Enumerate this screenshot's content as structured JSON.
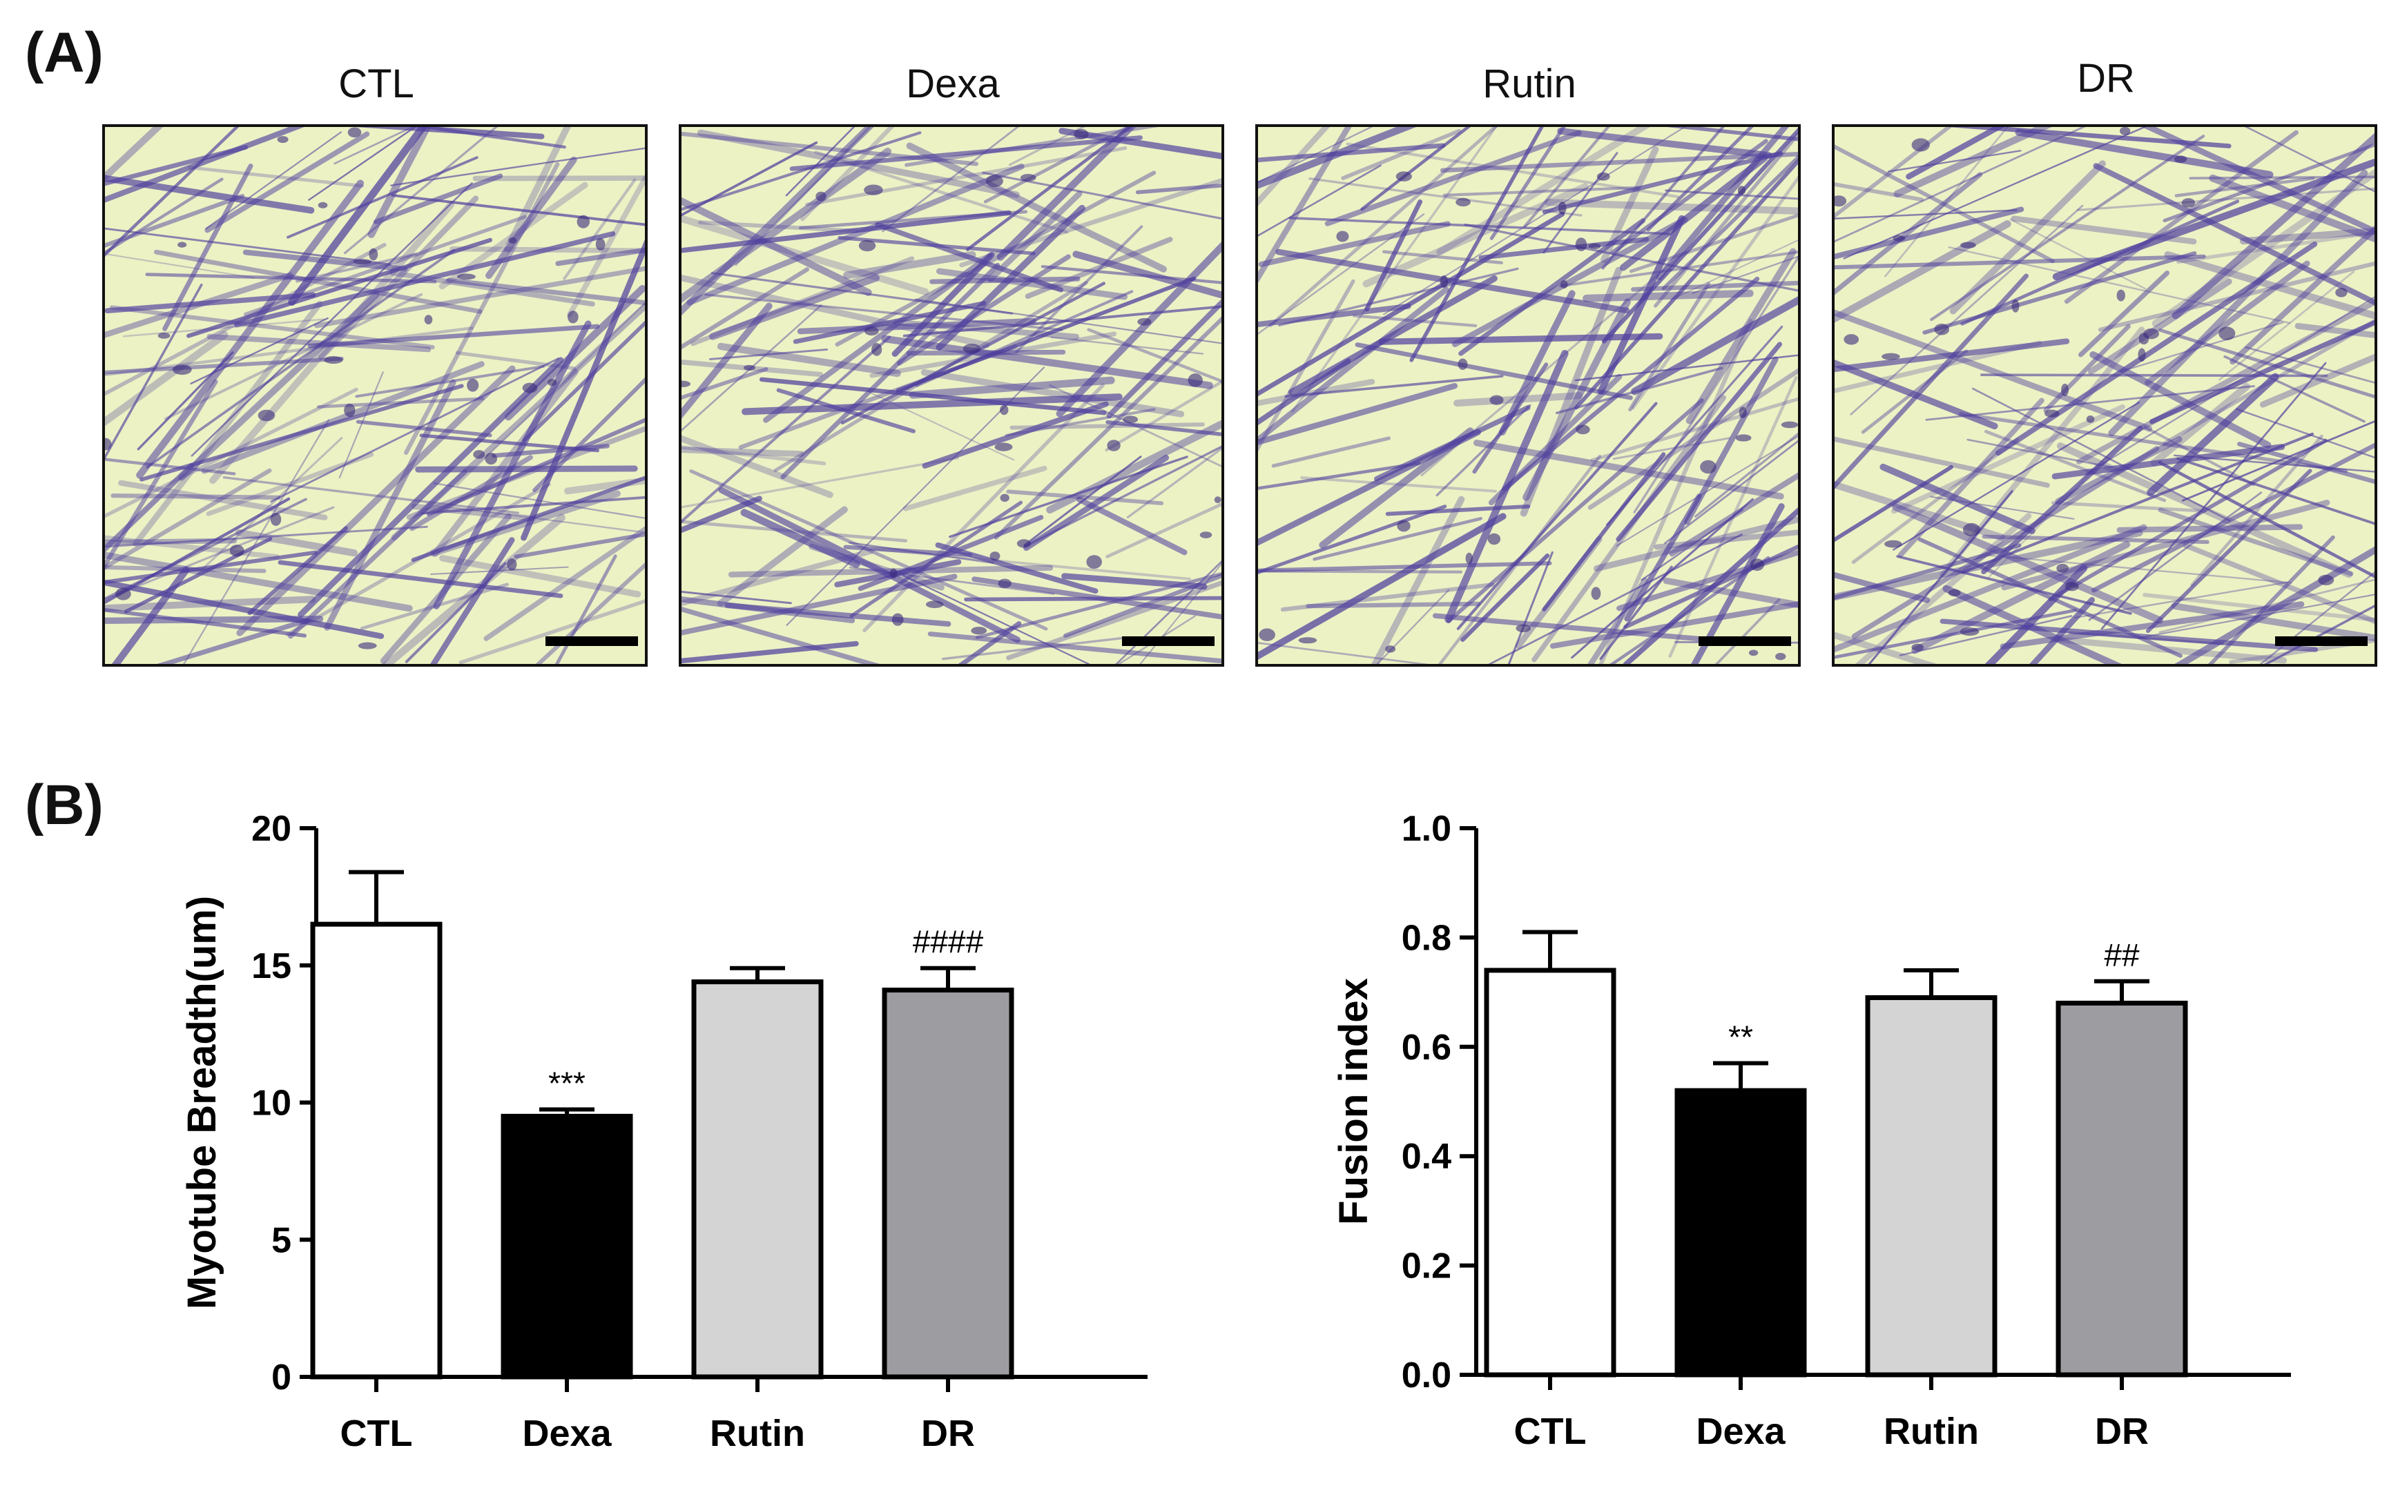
{
  "panels": {
    "a": "(A)",
    "b": "(B)"
  },
  "micrographs": [
    {
      "title": "CTL",
      "scale_bar": true
    },
    {
      "title": "Dexa",
      "scale_bar": true
    },
    {
      "title": "Rutin",
      "scale_bar": true
    },
    {
      "title": "DR",
      "scale_bar": true
    }
  ],
  "colors": {
    "stain": "#4f3f9e",
    "background": "#ecf2c4"
  },
  "chart_data": [
    {
      "type": "bar",
      "categories": [
        "CTL",
        "Dexa",
        "Rutin",
        "DR"
      ],
      "values": [
        16.5,
        9.5,
        14.4,
        14.1
      ],
      "errors": [
        1.9,
        0.25,
        0.5,
        0.8
      ],
      "annotations": [
        "",
        "***",
        "",
        "####"
      ],
      "bar_colors": [
        "#ffffff",
        "#000000",
        "#d4d4d4",
        "#9d9da1"
      ],
      "ylabel": "Myotube Breadth(um)",
      "ylim": [
        0,
        20
      ],
      "yticks": [
        "0",
        "5",
        "10",
        "15",
        "20"
      ],
      "grid": false
    },
    {
      "type": "bar",
      "categories": [
        "CTL",
        "Dexa",
        "Rutin",
        "DR"
      ],
      "values": [
        0.74,
        0.52,
        0.69,
        0.68
      ],
      "errors": [
        0.07,
        0.05,
        0.05,
        0.04
      ],
      "annotations": [
        "",
        "**",
        "",
        "##"
      ],
      "bar_colors": [
        "#ffffff",
        "#000000",
        "#d4d4d4",
        "#9d9da1"
      ],
      "ylabel": "Fusion index",
      "ylim": [
        0,
        1.0
      ],
      "yticks": [
        "0.0",
        "0.2",
        "0.4",
        "0.6",
        "0.8",
        "1.0"
      ],
      "grid": false
    }
  ]
}
